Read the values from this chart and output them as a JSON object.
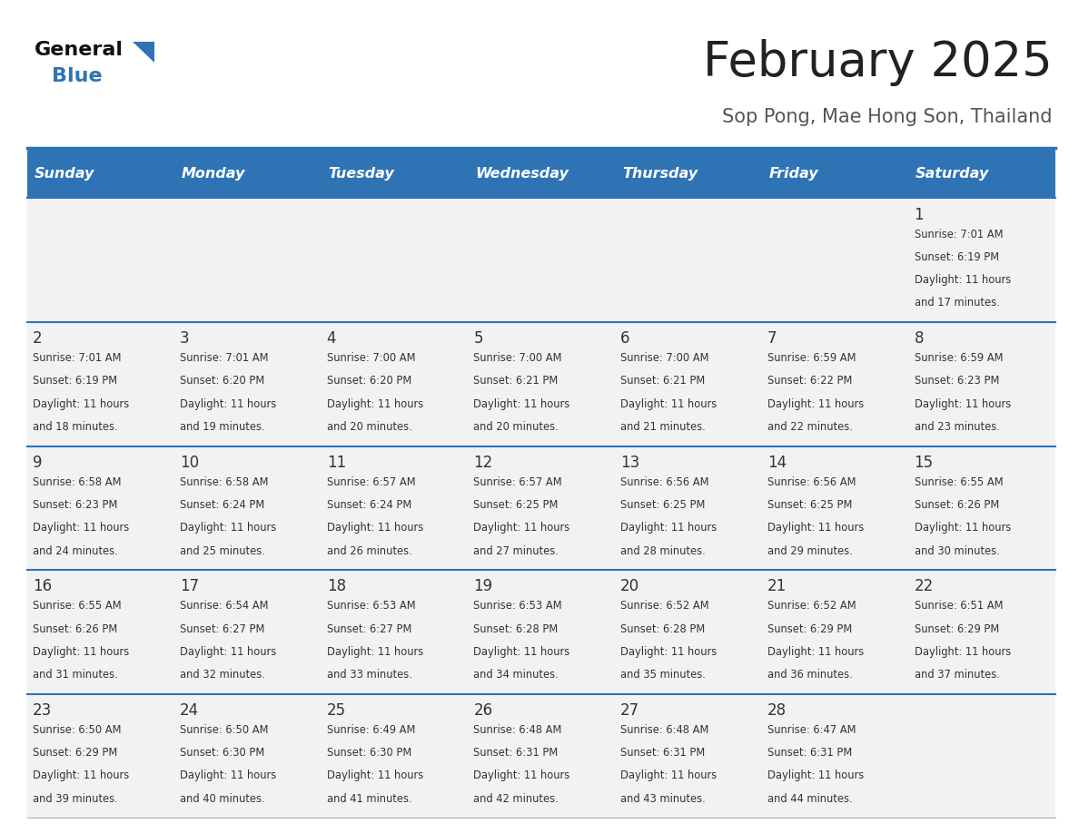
{
  "title": "February 2025",
  "subtitle": "Sop Pong, Mae Hong Son, Thailand",
  "days_of_week": [
    "Sunday",
    "Monday",
    "Tuesday",
    "Wednesday",
    "Thursday",
    "Friday",
    "Saturday"
  ],
  "header_bg": "#2E74B5",
  "header_text_color": "#FFFFFF",
  "cell_bg": "#F2F2F2",
  "row_line_color": "#2E74B5",
  "title_color": "#222222",
  "subtitle_color": "#555555",
  "day_num_color": "#333333",
  "cell_text_color": "#333333",
  "calendar": [
    [
      null,
      null,
      null,
      null,
      null,
      null,
      {
        "day": 1,
        "sunrise": "7:01 AM",
        "sunset": "6:19 PM",
        "daylight": "11 hours and 17 minutes."
      }
    ],
    [
      {
        "day": 2,
        "sunrise": "7:01 AM",
        "sunset": "6:19 PM",
        "daylight": "11 hours and 18 minutes."
      },
      {
        "day": 3,
        "sunrise": "7:01 AM",
        "sunset": "6:20 PM",
        "daylight": "11 hours and 19 minutes."
      },
      {
        "day": 4,
        "sunrise": "7:00 AM",
        "sunset": "6:20 PM",
        "daylight": "11 hours and 20 minutes."
      },
      {
        "day": 5,
        "sunrise": "7:00 AM",
        "sunset": "6:21 PM",
        "daylight": "11 hours and 20 minutes."
      },
      {
        "day": 6,
        "sunrise": "7:00 AM",
        "sunset": "6:21 PM",
        "daylight": "11 hours and 21 minutes."
      },
      {
        "day": 7,
        "sunrise": "6:59 AM",
        "sunset": "6:22 PM",
        "daylight": "11 hours and 22 minutes."
      },
      {
        "day": 8,
        "sunrise": "6:59 AM",
        "sunset": "6:23 PM",
        "daylight": "11 hours and 23 minutes."
      }
    ],
    [
      {
        "day": 9,
        "sunrise": "6:58 AM",
        "sunset": "6:23 PM",
        "daylight": "11 hours and 24 minutes."
      },
      {
        "day": 10,
        "sunrise": "6:58 AM",
        "sunset": "6:24 PM",
        "daylight": "11 hours and 25 minutes."
      },
      {
        "day": 11,
        "sunrise": "6:57 AM",
        "sunset": "6:24 PM",
        "daylight": "11 hours and 26 minutes."
      },
      {
        "day": 12,
        "sunrise": "6:57 AM",
        "sunset": "6:25 PM",
        "daylight": "11 hours and 27 minutes."
      },
      {
        "day": 13,
        "sunrise": "6:56 AM",
        "sunset": "6:25 PM",
        "daylight": "11 hours and 28 minutes."
      },
      {
        "day": 14,
        "sunrise": "6:56 AM",
        "sunset": "6:25 PM",
        "daylight": "11 hours and 29 minutes."
      },
      {
        "day": 15,
        "sunrise": "6:55 AM",
        "sunset": "6:26 PM",
        "daylight": "11 hours and 30 minutes."
      }
    ],
    [
      {
        "day": 16,
        "sunrise": "6:55 AM",
        "sunset": "6:26 PM",
        "daylight": "11 hours and 31 minutes."
      },
      {
        "day": 17,
        "sunrise": "6:54 AM",
        "sunset": "6:27 PM",
        "daylight": "11 hours and 32 minutes."
      },
      {
        "day": 18,
        "sunrise": "6:53 AM",
        "sunset": "6:27 PM",
        "daylight": "11 hours and 33 minutes."
      },
      {
        "day": 19,
        "sunrise": "6:53 AM",
        "sunset": "6:28 PM",
        "daylight": "11 hours and 34 minutes."
      },
      {
        "day": 20,
        "sunrise": "6:52 AM",
        "sunset": "6:28 PM",
        "daylight": "11 hours and 35 minutes."
      },
      {
        "day": 21,
        "sunrise": "6:52 AM",
        "sunset": "6:29 PM",
        "daylight": "11 hours and 36 minutes."
      },
      {
        "day": 22,
        "sunrise": "6:51 AM",
        "sunset": "6:29 PM",
        "daylight": "11 hours and 37 minutes."
      }
    ],
    [
      {
        "day": 23,
        "sunrise": "6:50 AM",
        "sunset": "6:29 PM",
        "daylight": "11 hours and 39 minutes."
      },
      {
        "day": 24,
        "sunrise": "6:50 AM",
        "sunset": "6:30 PM",
        "daylight": "11 hours and 40 minutes."
      },
      {
        "day": 25,
        "sunrise": "6:49 AM",
        "sunset": "6:30 PM",
        "daylight": "11 hours and 41 minutes."
      },
      {
        "day": 26,
        "sunrise": "6:48 AM",
        "sunset": "6:31 PM",
        "daylight": "11 hours and 42 minutes."
      },
      {
        "day": 27,
        "sunrise": "6:48 AM",
        "sunset": "6:31 PM",
        "daylight": "11 hours and 43 minutes."
      },
      {
        "day": 28,
        "sunrise": "6:47 AM",
        "sunset": "6:31 PM",
        "daylight": "11 hours and 44 minutes."
      },
      null
    ]
  ]
}
